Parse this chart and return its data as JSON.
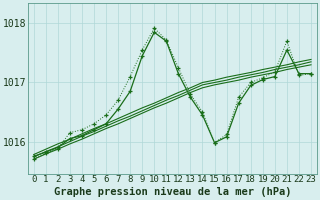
{
  "hours": [
    0,
    1,
    2,
    3,
    4,
    5,
    6,
    7,
    8,
    9,
    10,
    11,
    12,
    13,
    14,
    15,
    16,
    17,
    18,
    19,
    20,
    21,
    22,
    23
  ],
  "main_line": [
    1015.75,
    1015.82,
    1015.9,
    1016.05,
    1016.1,
    1016.2,
    1016.3,
    1016.55,
    1016.85,
    1017.45,
    1017.85,
    1017.7,
    1017.15,
    1016.75,
    1016.45,
    1015.98,
    1016.08,
    1016.65,
    1016.95,
    1017.05,
    1017.1,
    1017.55,
    1017.15,
    1017.15
  ],
  "dotted_line": [
    1015.7,
    1015.8,
    1015.88,
    1016.15,
    1016.2,
    1016.3,
    1016.45,
    1016.7,
    1017.1,
    1017.55,
    1017.92,
    1017.72,
    1017.25,
    1016.8,
    1016.5,
    1015.98,
    1016.12,
    1016.75,
    1017.0,
    1017.08,
    1017.18,
    1017.7,
    1017.12,
    1017.15
  ],
  "linear1": [
    1015.78,
    1015.87,
    1015.96,
    1016.04,
    1016.13,
    1016.22,
    1016.3,
    1016.39,
    1016.48,
    1016.57,
    1016.65,
    1016.74,
    1016.83,
    1016.91,
    1017.0,
    1017.04,
    1017.09,
    1017.13,
    1017.17,
    1017.22,
    1017.26,
    1017.3,
    1017.35,
    1017.39
  ],
  "linear2": [
    1015.74,
    1015.83,
    1015.91,
    1016.0,
    1016.09,
    1016.17,
    1016.26,
    1016.35,
    1016.43,
    1016.52,
    1016.61,
    1016.7,
    1016.78,
    1016.87,
    1016.96,
    1017.0,
    1017.04,
    1017.09,
    1017.13,
    1017.17,
    1017.22,
    1017.26,
    1017.3,
    1017.35
  ],
  "linear3": [
    1015.7,
    1015.79,
    1015.87,
    1015.96,
    1016.04,
    1016.13,
    1016.22,
    1016.3,
    1016.39,
    1016.48,
    1016.57,
    1016.65,
    1016.74,
    1016.83,
    1016.91,
    1016.96,
    1017.0,
    1017.04,
    1017.09,
    1017.13,
    1017.17,
    1017.22,
    1017.26,
    1017.3
  ],
  "bg_color": "#d8eeee",
  "grid_color": "#b0d8d8",
  "line_color": "#1a6e1a",
  "xlabel": "Graphe pression niveau de la mer (hPa)",
  "ylabel_ticks": [
    1016,
    1017,
    1018
  ],
  "xlim": [
    -0.5,
    23.5
  ],
  "ylim": [
    1015.45,
    1018.35
  ],
  "xlabel_fontsize": 7.5,
  "tick_fontsize": 6.5
}
